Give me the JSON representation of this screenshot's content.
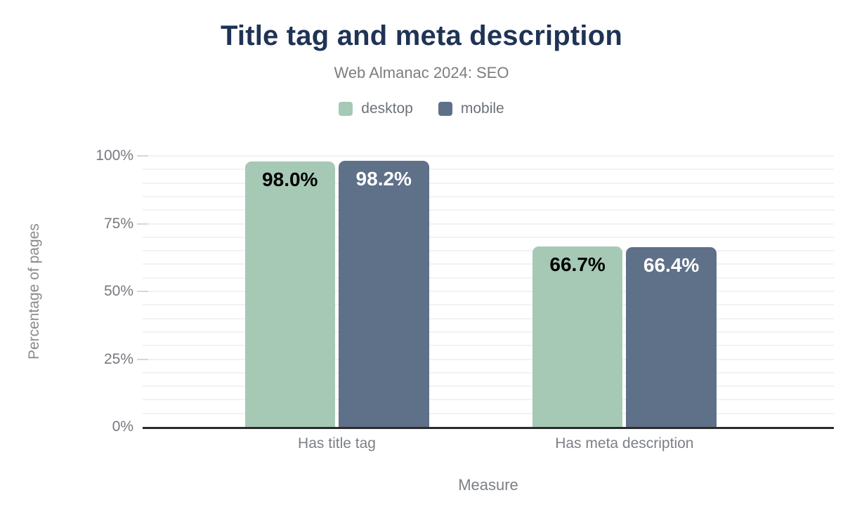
{
  "chart_data": {
    "type": "bar",
    "title": "Title tag and meta description",
    "subtitle": "Web Almanac 2024: SEO",
    "categories": [
      "Has title tag",
      "Has meta description"
    ],
    "series": [
      {
        "name": "desktop",
        "values": [
          98.0,
          66.7
        ],
        "labels": [
          "98.0%",
          "66.7%"
        ],
        "color": "#a6c9b6",
        "label_color": "#000000"
      },
      {
        "name": "mobile",
        "values": [
          98.2,
          66.4
        ],
        "labels": [
          "98.2%",
          "66.4%"
        ],
        "color": "#5f7089",
        "label_color": "#ffffff"
      }
    ],
    "xlabel": "Measure",
    "ylabel": "Percentage of pages",
    "ylim": [
      0,
      100
    ],
    "y_ticks": [
      0,
      25,
      50,
      75,
      100
    ],
    "y_tick_labels": [
      "0%",
      "25%",
      "50%",
      "75%",
      "100%"
    ],
    "minor_grid_step": 5,
    "grid": "on",
    "legend_position": "top",
    "colors": {
      "title": "#1f3355",
      "subtitle_text": "#7d7d7d",
      "axis_text": "#7c8086",
      "axis_line": "#2b2b2b",
      "gridline": "#f2f2f2",
      "background": "#ffffff"
    }
  }
}
